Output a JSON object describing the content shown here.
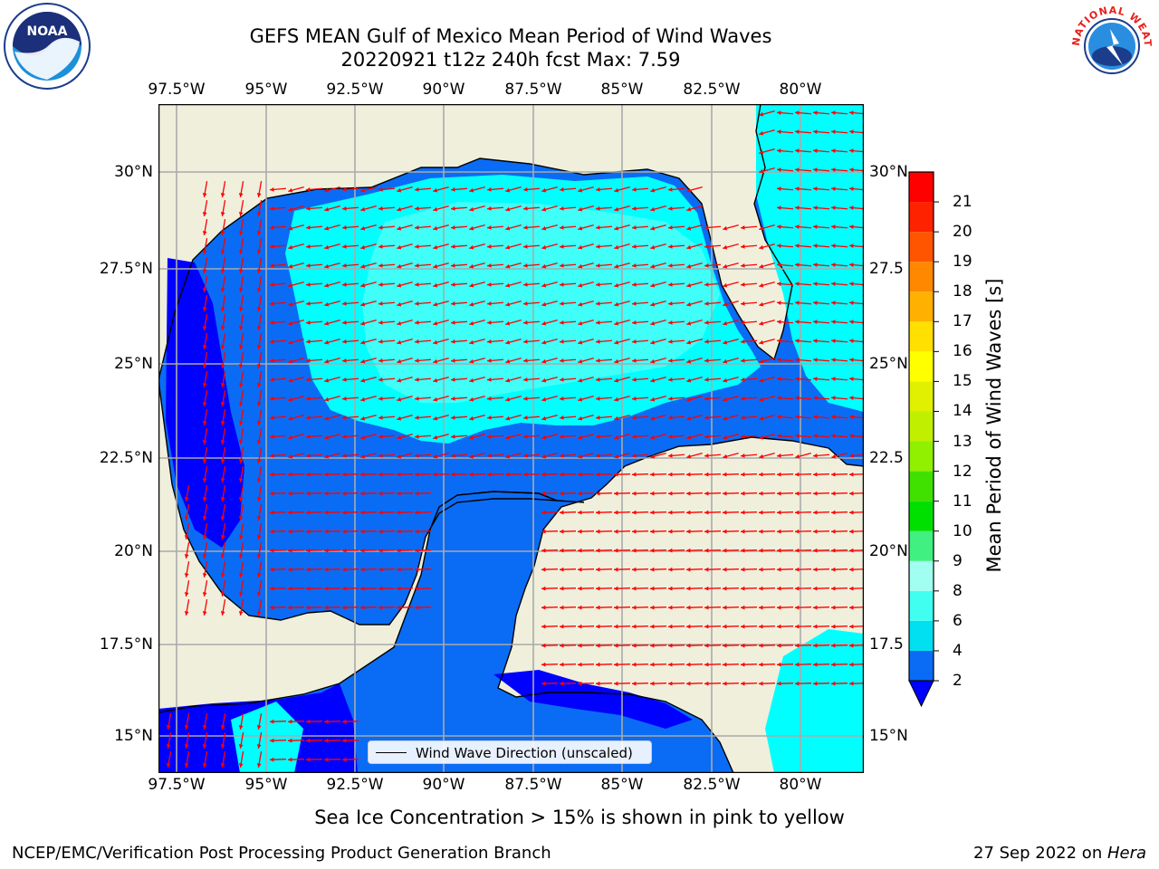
{
  "title_line1": "GEFS MEAN Gulf of Mexico Mean Period of Wind Waves",
  "title_line2": "20220921 t12z 240h fcst   Max: 7.59",
  "lon_ticks": [
    "97.5°W",
    "95°W",
    "92.5°W",
    "90°W",
    "87.5°W",
    "85°W",
    "82.5°W",
    "80°W"
  ],
  "lat_ticks": [
    "30°N",
    "27.5°N",
    "25°N",
    "22.5°N",
    "20°N",
    "17.5°N",
    "15°N"
  ],
  "lat_ticks_right": [
    "30°N",
    "27.5",
    "25°N",
    "22.5",
    "20°N",
    "17.5",
    "15°N"
  ],
  "colorbar": {
    "label": "Mean Period of Wind Waves [s]",
    "ticks": [
      "2",
      "4",
      "6",
      "8",
      "9",
      "10",
      "11",
      "12",
      "13",
      "14",
      "15",
      "16",
      "17",
      "18",
      "19",
      "20",
      "21"
    ],
    "colors": [
      "#0a6cf5",
      "#00e0f0",
      "#40fff0",
      "#a0fff0",
      "#40f080",
      "#00e000",
      "#40e000",
      "#90f000",
      "#c0f000",
      "#e0f000",
      "#ffff00",
      "#ffe000",
      "#ffb000",
      "#ff8800",
      "#ff5500",
      "#ff2200",
      "#ff0000"
    ],
    "extend_color": "#0000ff"
  },
  "map": {
    "land_color": "#efefdc",
    "ocean_levels": {
      "deep": "#0000ff",
      "low": "#0a6cf5",
      "mid": "#00ffff",
      "high": "#40fff8"
    },
    "arrow_color": "#ff0000"
  },
  "legend_label": "Wind Wave Direction (unscaled)",
  "sea_ice_note": "Sea Ice Concentration > 15% is shown in pink to yellow",
  "credit": "NCEP/EMC/Verification Post Processing Product Generation Branch",
  "date": "27 Sep 2022 on ",
  "host": "Hera",
  "logos": {
    "noaa_text": "NOAA",
    "nws_text": "NATIONAL WEATHER SERVICE"
  }
}
